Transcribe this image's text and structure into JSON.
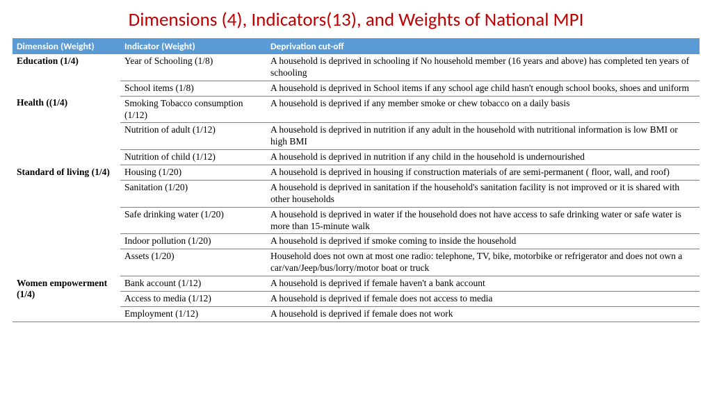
{
  "title": "Dimensions (4), Indicators(13), and Weights of National MPI",
  "title_color": "#c00000",
  "header_bg": "#5b9bd5",
  "columns": [
    "Dimension (Weight)",
    "Indicator (Weight)",
    "Deprivation cut-off"
  ],
  "groups": [
    {
      "dimension": "Education (1/4)",
      "rows": [
        {
          "indicator": "Year of Schooling (1/8)",
          "cutoff": "A household is deprived in schooling if No household member (16 years and above) has completed ten years of schooling"
        },
        {
          "indicator": "School items (1/8)",
          "cutoff": "A household is deprived in School items if any school age child hasn't enough school books, shoes and uniform"
        }
      ]
    },
    {
      "dimension": "Health ((1/4)",
      "rows": [
        {
          "indicator": "Smoking Tobacco consumption (1/12)",
          "cutoff": "A household is deprived if any member smoke or chew tobacco on a daily basis"
        },
        {
          "indicator": "Nutrition of adult (1/12)",
          "cutoff": "A household is deprived in nutrition if any adult in the household with nutritional information is low BMI or high BMI"
        },
        {
          "indicator": "Nutrition of child (1/12)",
          "cutoff": "A household is deprived in nutrition if any child in the household is undernourished"
        }
      ]
    },
    {
      "dimension": "Standard of living (1/4)",
      "rows": [
        {
          "indicator": "Housing (1/20)",
          "cutoff": "A household is deprived in housing if construction materials of are semi-permanent ( floor, wall, and roof)"
        },
        {
          "indicator": "Sanitation (1/20)",
          "cutoff": "A household is deprived in sanitation if the household's sanitation facility is not improved or it is shared with other households"
        },
        {
          "indicator": "Safe drinking water (1/20)",
          "cutoff": "A household is deprived in water if the household does not have access to safe drinking water or safe water is more than 15-minute walk"
        },
        {
          "indicator": "Indoor pollution (1/20)",
          "cutoff": "A household is deprived if smoke coming to inside the household"
        },
        {
          "indicator": "Assets (1/20)",
          "cutoff": "Household does not own  at most one radio: telephone, TV, bike, motorbike or refrigerator and does not own a car/van/Jeep/bus/lorry/motor boat  or truck"
        }
      ]
    },
    {
      "dimension": "Women empowerment (1/4)",
      "rows": [
        {
          "indicator": "Bank account (1/12)",
          "cutoff": "A household is deprived if female haven't a bank account"
        },
        {
          "indicator": "Access to media (1/12)",
          "cutoff": "A household is deprived if female does not access to media"
        },
        {
          "indicator": "Employment (1/12)",
          "cutoff": "A household is deprived if female does not work"
        }
      ]
    }
  ]
}
